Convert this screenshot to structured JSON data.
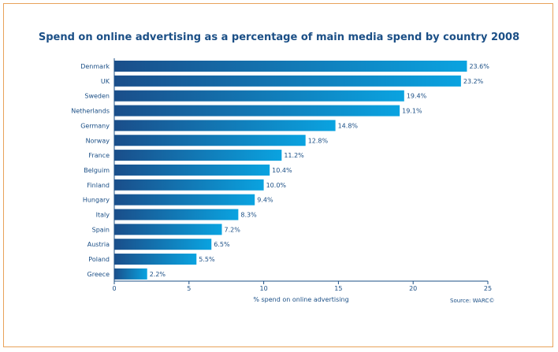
{
  "chart_data": {
    "type": "bar",
    "orientation": "horizontal",
    "title": "Spend on online advertising as a percentage of main media spend by country 2008",
    "xlabel": "% spend on online advertising",
    "ylabel": "",
    "xlim": [
      0,
      25
    ],
    "xticks": [
      "0",
      "5",
      "10",
      "15",
      "20",
      "25"
    ],
    "categories": [
      "Denmark",
      "UK",
      "Sweden",
      "Netherlands",
      "Germany",
      "Norway",
      "France",
      "Belguim",
      "Finland",
      "Hungary",
      "Italy",
      "Spain",
      "Austria",
      "Poland",
      "Greece"
    ],
    "values": [
      23.6,
      23.2,
      19.4,
      19.1,
      14.8,
      12.8,
      11.2,
      10.4,
      10.0,
      9.4,
      8.3,
      7.2,
      6.5,
      5.5,
      2.2
    ],
    "data_labels": [
      "23.6%",
      "23.2%",
      "19.4%",
      "19.1%",
      "14.8%",
      "12.8%",
      "11.2%",
      "10.4%",
      "10.0%",
      "9.4%",
      "8.3%",
      "7.2%",
      "6.5%",
      "5.5%",
      "2.2%"
    ],
    "source": "Source: WARC©",
    "colors": {
      "bar_start": "#1a4e8a",
      "bar_end": "#0aa3e0",
      "text": "#1b4f86",
      "frame": "#e8a25a"
    },
    "grid": false
  }
}
